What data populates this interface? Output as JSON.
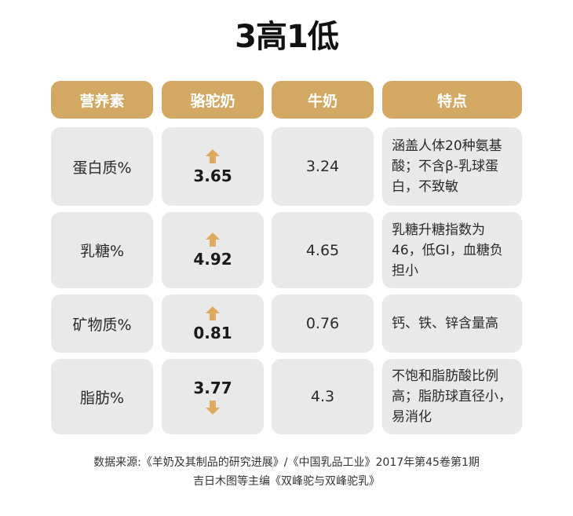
{
  "title": "3高1低",
  "headers": [
    "营养素",
    "骆驼奶",
    "牛奶",
    "特点"
  ],
  "rows": [
    {
      "nutrient": "蛋白质%",
      "camel": "3.65",
      "camel_trend": "up",
      "cow": "3.24",
      "feature": "涵盖人体20种氨基酸；不含β-乳球蛋白，不致敏"
    },
    {
      "nutrient": "乳糖%",
      "camel": "4.92",
      "camel_trend": "up",
      "cow": "4.65",
      "feature": "乳糖升糖指数为46，低GI，血糖负担小"
    },
    {
      "nutrient": "矿物质%",
      "camel": "0.81",
      "camel_trend": "up",
      "cow": "0.76",
      "feature": "钙、铁、锌含量高"
    },
    {
      "nutrient": "脂肪%",
      "camel": "3.77",
      "camel_trend": "down",
      "cow": "4.3",
      "feature": "不饱和脂肪酸比例高；脂肪球直径小，易消化"
    }
  ],
  "footer": {
    "line1": "数据来源:《羊奶及其制品的研究进展》/《中国乳品工业》2017年第45卷第1期",
    "line2": "吉日木图等主编《双峰驼与双峰驼乳》"
  },
  "colors": {
    "header": "#d2a863",
    "cell": "#e9e9e9",
    "arrow": "#dcab5e"
  },
  "icons": {
    "up": "arrow-up-icon",
    "down": "arrow-down-icon"
  }
}
